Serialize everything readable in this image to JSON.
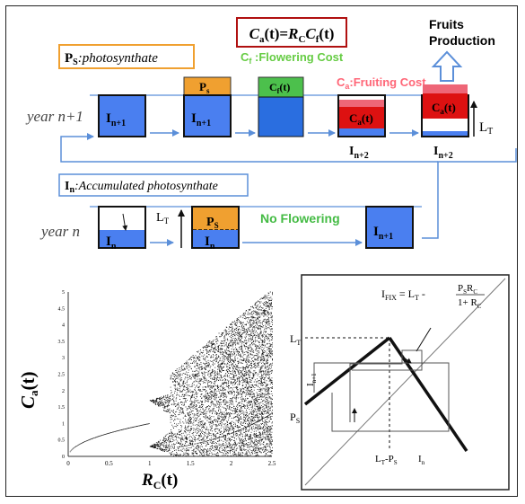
{
  "equation": {
    "lhs": "C",
    "lhs_sub": "a",
    "mid": "(t)=",
    "r": "R",
    "r_sub": "C",
    "c": "C",
    "c_sub": "f",
    "end": "(t)"
  },
  "fruits": {
    "line1": "Fruits",
    "line2": "Production"
  },
  "ps_label": {
    "main": "P",
    "sub": "S",
    "rest": ":photosynthate"
  },
  "cf_label": {
    "main": "C",
    "sub": "f",
    "rest": " :Flowering Cost"
  },
  "ca_label": {
    "main": "C",
    "sub": "a",
    "rest": ":Fruiting Cost"
  },
  "in_label": {
    "main": "I",
    "sub": "n",
    "rest": ":Accumulated photosynthate"
  },
  "year_top": "year n+1",
  "year_bottom": "year n",
  "no_flowering": "No Flowering",
  "lt_label": {
    "main": "L",
    "sub": "T"
  },
  "box": {
    "i_main": "I",
    "n1_sub": "n+1",
    "n2_sub": "n+2",
    "n_sub": "n",
    "ps_main": "P",
    "ps_sub": "s",
    "ps2_main": "P",
    "ps2_sub": "S",
    "cf_main": "C",
    "cf_sub": "f",
    "cf_rest": "(t)",
    "ca_main": "C",
    "ca_sub": "a",
    "ca_rest": "(t)"
  },
  "colors": {
    "blue": "#4a7ff0",
    "orange": "#f0a030",
    "green": "#4cc04c",
    "red": "#dd1111",
    "pink": "#ee6677",
    "green_text": "#66cc44",
    "pink_text": "#ff6677",
    "arrow_blue": "#5b8fd9"
  },
  "bifurcation": {
    "ylabel": {
      "main": "C",
      "sub": "a",
      "rest": "(t)"
    },
    "xlabel": {
      "main": "R",
      "sub": "C",
      "rest": "(t)"
    },
    "xticks": [
      "0",
      "0.5",
      "1",
      "1.5",
      "2",
      "2.5"
    ],
    "yticks": [
      "0",
      "0.5",
      "1",
      "1.5",
      "2",
      "2.5",
      "3",
      "3.5",
      "4",
      "4.5",
      "5"
    ]
  },
  "return_map": {
    "ifix": {
      "main": "I",
      "sub": "FIX",
      "mid": " = L",
      "sub2": "T",
      "minus": " - ",
      "num": "P",
      "num_sub": "S",
      "num2": "R",
      "num2_sub": "C",
      "den": "1+ R",
      "den_sub": "C"
    },
    "lt": {
      "main": "L",
      "sub": "T"
    },
    "ps": {
      "main": "P",
      "sub": "S"
    },
    "yaxis": "I",
    "yaxis_sub": "n+1",
    "xtick": {
      "main": "L",
      "sub": "T",
      "mid": "-P",
      "sub2": "S"
    },
    "xaxis": {
      "main": "I",
      "sub": "n"
    }
  }
}
